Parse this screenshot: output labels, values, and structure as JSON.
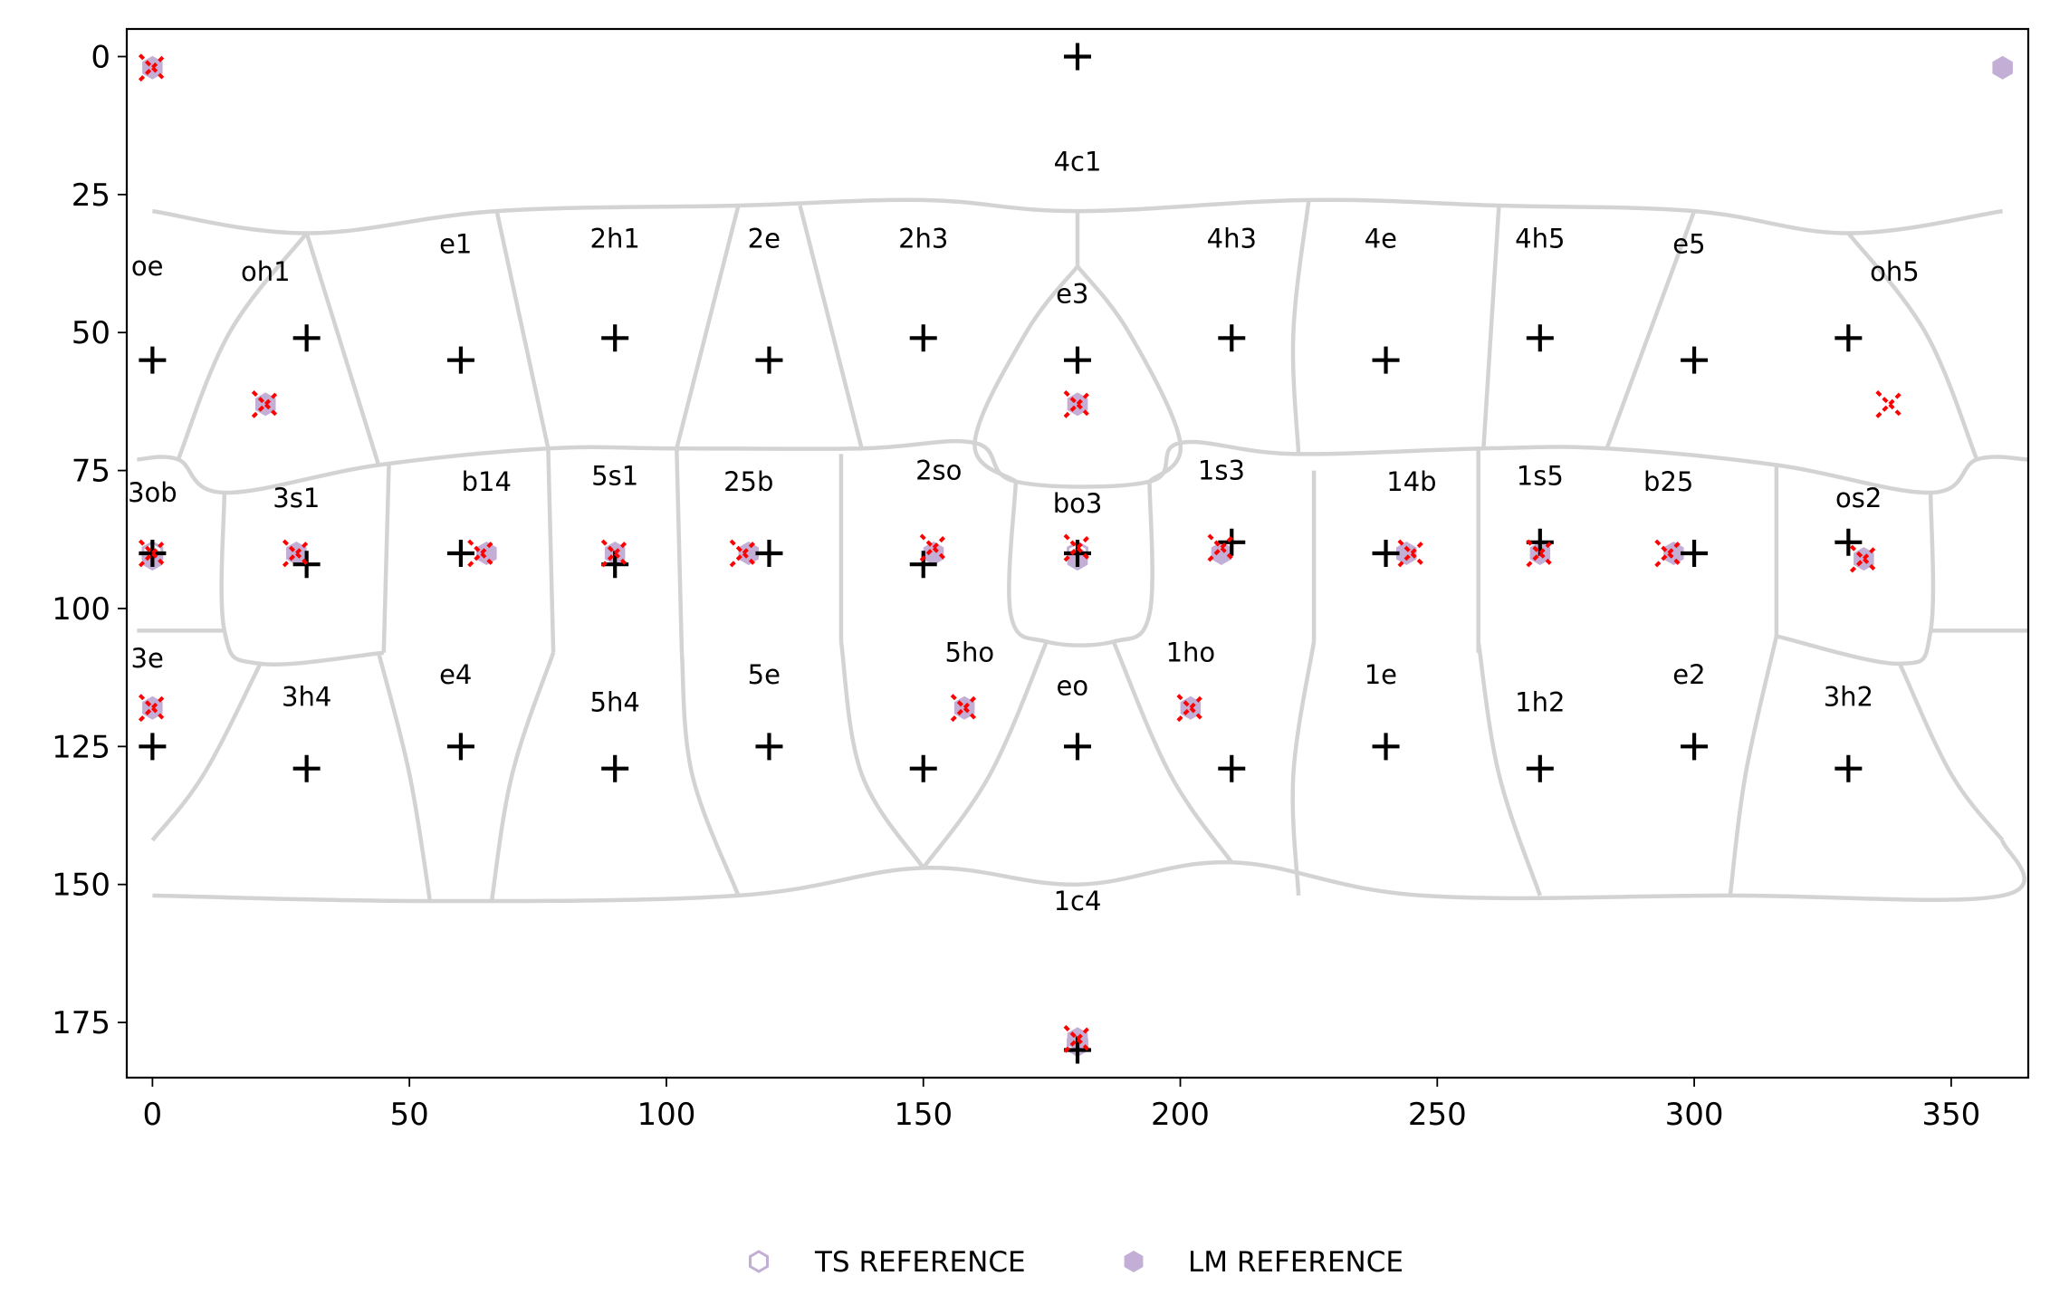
{
  "chart_data": {
    "type": "scatter",
    "title": "",
    "xlabel": "",
    "ylabel": "",
    "xlim": [
      -5,
      365
    ],
    "ylim": [
      185,
      -5
    ],
    "y_inverted": true,
    "grid": false,
    "xticks": [
      "0",
      "50",
      "100",
      "150",
      "200",
      "250",
      "300",
      "350"
    ],
    "yticks": [
      "0",
      "25",
      "50",
      "75",
      "100",
      "125",
      "150",
      "175"
    ],
    "xtick_values": [
      0,
      50,
      100,
      150,
      200,
      250,
      300,
      350
    ],
    "ytick_values": [
      0,
      25,
      50,
      75,
      100,
      125,
      150,
      175
    ],
    "colors": {
      "region_edges": "#d3d3d3",
      "reference": "#c3aed6",
      "plus_marker": "#000000",
      "x_marker": "#ff0000"
    },
    "legend": {
      "placement": "bottom-center",
      "entries": [
        {
          "label": "TS REFERENCE",
          "marker": "hexagon-open"
        },
        {
          "label": "LM REFERENCE",
          "marker": "hexagon-filled"
        }
      ]
    },
    "region_labels": [
      {
        "text": "4c1",
        "x": 180,
        "y": 19
      },
      {
        "text": "oe",
        "x": -1,
        "y": 38
      },
      {
        "text": "oh1",
        "x": 22,
        "y": 39
      },
      {
        "text": "e1",
        "x": 59,
        "y": 34
      },
      {
        "text": "2h1",
        "x": 90,
        "y": 33
      },
      {
        "text": "2e",
        "x": 119,
        "y": 33
      },
      {
        "text": "2h3",
        "x": 150,
        "y": 33
      },
      {
        "text": "e3",
        "x": 179,
        "y": 43
      },
      {
        "text": "4h3",
        "x": 210,
        "y": 33
      },
      {
        "text": "4e",
        "x": 239,
        "y": 33
      },
      {
        "text": "4h5",
        "x": 270,
        "y": 33
      },
      {
        "text": "e5",
        "x": 299,
        "y": 34
      },
      {
        "text": "oh5",
        "x": 339,
        "y": 39
      },
      {
        "text": "3ob",
        "x": 0,
        "y": 79
      },
      {
        "text": "3s1",
        "x": 28,
        "y": 80
      },
      {
        "text": "b14",
        "x": 65,
        "y": 77
      },
      {
        "text": "5s1",
        "x": 90,
        "y": 76
      },
      {
        "text": "25b",
        "x": 116,
        "y": 77
      },
      {
        "text": "2so",
        "x": 153,
        "y": 75
      },
      {
        "text": "bo3",
        "x": 180,
        "y": 81
      },
      {
        "text": "1s3",
        "x": 208,
        "y": 75
      },
      {
        "text": "14b",
        "x": 245,
        "y": 77
      },
      {
        "text": "1s5",
        "x": 270,
        "y": 76
      },
      {
        "text": "b25",
        "x": 295,
        "y": 77
      },
      {
        "text": "os2",
        "x": 332,
        "y": 80
      },
      {
        "text": "3e",
        "x": -1,
        "y": 109
      },
      {
        "text": "3h4",
        "x": 30,
        "y": 116
      },
      {
        "text": "e4",
        "x": 59,
        "y": 112
      },
      {
        "text": "5h4",
        "x": 90,
        "y": 117
      },
      {
        "text": "5e",
        "x": 119,
        "y": 112
      },
      {
        "text": "5ho",
        "x": 159,
        "y": 108
      },
      {
        "text": "eo",
        "x": 179,
        "y": 114
      },
      {
        "text": "1ho",
        "x": 202,
        "y": 108
      },
      {
        "text": "1e",
        "x": 239,
        "y": 112
      },
      {
        "text": "1h2",
        "x": 270,
        "y": 117
      },
      {
        "text": "e2",
        "x": 299,
        "y": 112
      },
      {
        "text": "3h2",
        "x": 330,
        "y": 116
      },
      {
        "text": "1c4",
        "x": 180,
        "y": 153
      }
    ],
    "series": [
      {
        "name": "TS REFERENCE",
        "marker": "hexagon-open",
        "points": [
          [
            0,
            90
          ],
          [
            180,
            90
          ],
          [
            180,
            179
          ]
        ]
      },
      {
        "name": "LM REFERENCE",
        "marker": "hexagon-filled",
        "points": [
          [
            0,
            2
          ],
          [
            360,
            2
          ],
          [
            22,
            63
          ],
          [
            180,
            63
          ],
          [
            0,
            91
          ],
          [
            28,
            90
          ],
          [
            65,
            90
          ],
          [
            90,
            90
          ],
          [
            116,
            90
          ],
          [
            152,
            90
          ],
          [
            180,
            91
          ],
          [
            208,
            90
          ],
          [
            244,
            90
          ],
          [
            270,
            90
          ],
          [
            296,
            90
          ],
          [
            333,
            91
          ],
          [
            0,
            118
          ],
          [
            158,
            118
          ],
          [
            202,
            118
          ],
          [
            180,
            178
          ]
        ]
      },
      {
        "marker": "plus",
        "points": [
          [
            180,
            0
          ],
          [
            0,
            55
          ],
          [
            30,
            51
          ],
          [
            60,
            55
          ],
          [
            90,
            51
          ],
          [
            120,
            55
          ],
          [
            150,
            51
          ],
          [
            180,
            55
          ],
          [
            210,
            51
          ],
          [
            240,
            55
          ],
          [
            270,
            51
          ],
          [
            300,
            55
          ],
          [
            330,
            51
          ],
          [
            0,
            90
          ],
          [
            30,
            92
          ],
          [
            60,
            90
          ],
          [
            90,
            92
          ],
          [
            120,
            90
          ],
          [
            150,
            92
          ],
          [
            180,
            90
          ],
          [
            210,
            88
          ],
          [
            240,
            90
          ],
          [
            270,
            88
          ],
          [
            300,
            90
          ],
          [
            330,
            88
          ],
          [
            0,
            125
          ],
          [
            30,
            129
          ],
          [
            60,
            125
          ],
          [
            90,
            129
          ],
          [
            120,
            125
          ],
          [
            150,
            129
          ],
          [
            180,
            125
          ],
          [
            210,
            129
          ],
          [
            240,
            125
          ],
          [
            270,
            129
          ],
          [
            300,
            125
          ],
          [
            330,
            129
          ],
          [
            180,
            180
          ]
        ]
      },
      {
        "marker": "x",
        "points": [
          [
            0,
            2
          ],
          [
            22,
            63
          ],
          [
            180,
            63
          ],
          [
            338,
            63
          ],
          [
            0,
            90
          ],
          [
            28,
            90
          ],
          [
            64,
            90
          ],
          [
            90,
            90
          ],
          [
            115,
            90
          ],
          [
            152,
            89
          ],
          [
            180,
            89
          ],
          [
            208,
            89
          ],
          [
            245,
            90
          ],
          [
            270,
            90
          ],
          [
            295,
            90
          ],
          [
            333,
            91
          ],
          [
            0,
            118
          ],
          [
            158,
            118
          ],
          [
            202,
            118
          ],
          [
            180,
            178
          ]
        ]
      }
    ],
    "region_boundaries": [
      [
        [
          0,
          28
        ],
        [
          30,
          32
        ],
        [
          67,
          28
        ],
        [
          114,
          27
        ],
        [
          150,
          26
        ],
        [
          180,
          28
        ],
        [
          225,
          26
        ],
        [
          262,
          27
        ],
        [
          300,
          28
        ],
        [
          330,
          32
        ],
        [
          360,
          28
        ]
      ],
      [
        [
          30,
          32
        ],
        [
          15,
          50
        ],
        [
          5,
          73
        ]
      ],
      [
        [
          30,
          32
        ],
        [
          44,
          74
        ]
      ],
      [
        [
          67,
          28
        ],
        [
          77,
          71
        ]
      ],
      [
        [
          114,
          27
        ],
        [
          102,
          71
        ]
      ],
      [
        [
          126,
          27
        ],
        [
          138,
          71
        ]
      ],
      [
        [
          180,
          28
        ],
        [
          180,
          38
        ]
      ],
      [
        [
          180,
          38
        ],
        [
          170,
          50
        ],
        [
          160,
          70
        ],
        [
          168,
          77
        ]
      ],
      [
        [
          180,
          38
        ],
        [
          190,
          50
        ],
        [
          200,
          70
        ],
        [
          194,
          77
        ]
      ],
      [
        [
          225,
          26
        ],
        [
          222,
          50
        ],
        [
          223,
          72
        ]
      ],
      [
        [
          262,
          27
        ],
        [
          259,
          71
        ]
      ],
      [
        [
          300,
          28
        ],
        [
          283,
          71
        ]
      ],
      [
        [
          330,
          32
        ],
        [
          345,
          50
        ],
        [
          355,
          73
        ]
      ],
      [
        [
          -3,
          73
        ],
        [
          5,
          73
        ],
        [
          14,
          79
        ],
        [
          44,
          74
        ],
        [
          77,
          71
        ],
        [
          102,
          71
        ],
        [
          138,
          71
        ],
        [
          160,
          70
        ],
        [
          168,
          77
        ],
        [
          194,
          77
        ],
        [
          200,
          70
        ],
        [
          222,
          72
        ],
        [
          259,
          71
        ],
        [
          283,
          71
        ],
        [
          316,
          74
        ],
        [
          346,
          79
        ],
        [
          355,
          73
        ],
        [
          365,
          73
        ]
      ],
      [
        [
          14,
          79
        ],
        [
          14,
          104
        ],
        [
          21,
          110
        ],
        [
          45,
          108
        ]
      ],
      [
        [
          45,
          108
        ],
        [
          46,
          74
        ]
      ],
      [
        [
          77,
          71
        ],
        [
          78,
          108
        ]
      ],
      [
        [
          102,
          71
        ],
        [
          103,
          108
        ]
      ],
      [
        [
          134,
          72
        ],
        [
          134,
          106
        ]
      ],
      [
        [
          168,
          77
        ],
        [
          167,
          101
        ],
        [
          174,
          106
        ],
        [
          187,
          106
        ],
        [
          194,
          101
        ],
        [
          194,
          77
        ]
      ],
      [
        [
          226,
          75
        ],
        [
          226,
          106
        ]
      ],
      [
        [
          258,
          71
        ],
        [
          258,
          108
        ]
      ],
      [
        [
          316,
          74
        ],
        [
          316,
          105
        ]
      ],
      [
        [
          346,
          79
        ],
        [
          346,
          104
        ],
        [
          340,
          110
        ],
        [
          316,
          105
        ]
      ],
      [
        [
          -3,
          104
        ],
        [
          14,
          104
        ]
      ],
      [
        [
          346,
          104
        ],
        [
          365,
          104
        ]
      ],
      [
        [
          21,
          110
        ],
        [
          10,
          130
        ],
        [
          0,
          142
        ]
      ],
      [
        [
          44,
          108
        ],
        [
          50,
          130
        ],
        [
          54,
          153
        ]
      ],
      [
        [
          78,
          108
        ],
        [
          70,
          130
        ],
        [
          66,
          153
        ]
      ],
      [
        [
          103,
          108
        ],
        [
          105,
          130
        ],
        [
          114,
          152
        ]
      ],
      [
        [
          134,
          106
        ],
        [
          138,
          130
        ],
        [
          150,
          147
        ]
      ],
      [
        [
          174,
          106
        ],
        [
          163,
          130
        ],
        [
          150,
          147
        ]
      ],
      [
        [
          187,
          106
        ],
        [
          198,
          130
        ],
        [
          210,
          146
        ]
      ],
      [
        [
          226,
          106
        ],
        [
          222,
          130
        ],
        [
          223,
          152
        ]
      ],
      [
        [
          258,
          106
        ],
        [
          262,
          130
        ],
        [
          270,
          152
        ]
      ],
      [
        [
          316,
          105
        ],
        [
          310,
          130
        ],
        [
          307,
          152
        ]
      ],
      [
        [
          340,
          110
        ],
        [
          350,
          130
        ],
        [
          360,
          142
        ]
      ],
      [
        [
          0,
          152
        ],
        [
          54,
          153
        ],
        [
          114,
          152
        ],
        [
          150,
          147
        ],
        [
          180,
          150
        ],
        [
          210,
          146
        ],
        [
          247,
          152
        ],
        [
          307,
          152
        ],
        [
          360,
          152
        ],
        [
          360,
          142
        ]
      ]
    ]
  }
}
